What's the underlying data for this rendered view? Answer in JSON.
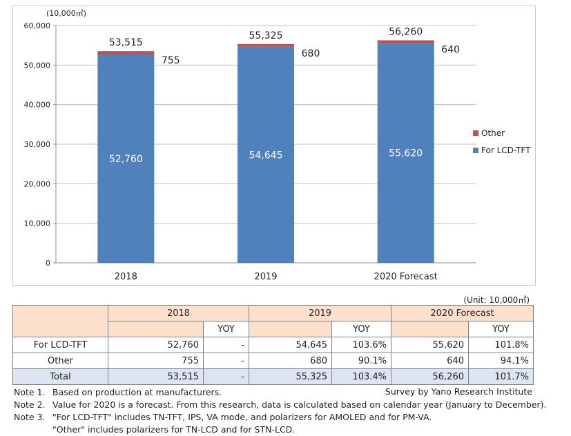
{
  "chart_data": {
    "type": "bar",
    "stacked": true,
    "title": "",
    "y_unit_label": "(10,000㎡)",
    "categories": [
      "2018",
      "2019",
      "2020 Forecast"
    ],
    "ylim": [
      0,
      60000
    ],
    "y_ticks": [
      0,
      10000,
      20000,
      30000,
      40000,
      50000,
      60000
    ],
    "y_tick_labels": [
      "0",
      "10,000",
      "20,000",
      "30,000",
      "40,000",
      "50,000",
      "60,000"
    ],
    "grid": true,
    "legend_position": "right",
    "series": [
      {
        "name": "For LCD-TFT",
        "color": "#4f81bd",
        "values": [
          52760,
          54645,
          55620
        ],
        "labels": [
          "52,760",
          "54,645",
          "55,620"
        ]
      },
      {
        "name": "Other",
        "color": "#c0504d",
        "values": [
          755,
          680,
          640
        ],
        "labels": [
          "755",
          "680",
          "640"
        ]
      }
    ],
    "totals": [
      53515,
      55325,
      56260
    ],
    "total_labels": [
      "53,515",
      "55,325",
      "56,260"
    ]
  },
  "table": {
    "unit": "(Unit: 10,000㎡)",
    "years": [
      "2018",
      "2019",
      "2020 Forecast"
    ],
    "yoy_label": "YOY",
    "rows": [
      {
        "label": "For LCD-TFT",
        "cells": [
          "52,760",
          "-",
          "54,645",
          "103.6%",
          "55,620",
          "101.8%"
        ]
      },
      {
        "label": "Other",
        "cells": [
          "755",
          "-",
          "680",
          "90.1%",
          "640",
          "94.1%"
        ]
      },
      {
        "label": "Total",
        "cells": [
          "53,515",
          "-",
          "55,325",
          "103.4%",
          "56,260",
          "101.7%"
        ]
      }
    ]
  },
  "notes": [
    {
      "key": "Note 1.",
      "text": "Based on production at manufacturers."
    },
    {
      "key": "Note 2.",
      "text": "Value for 2020 is a forecast. From this research, data is calculated based on calendar year (January to December)."
    },
    {
      "key": "Note 3.",
      "text": "\"For LCD-TFT\" includes TN-TFT, IPS, VA mode, and polarizers for AMOLED and for PM-VA."
    },
    {
      "key": "",
      "text": "\"Other\" includes polarizers for TN-LCD and for STN-LCD."
    }
  ],
  "survey": "Survey by Yano Research Institute"
}
